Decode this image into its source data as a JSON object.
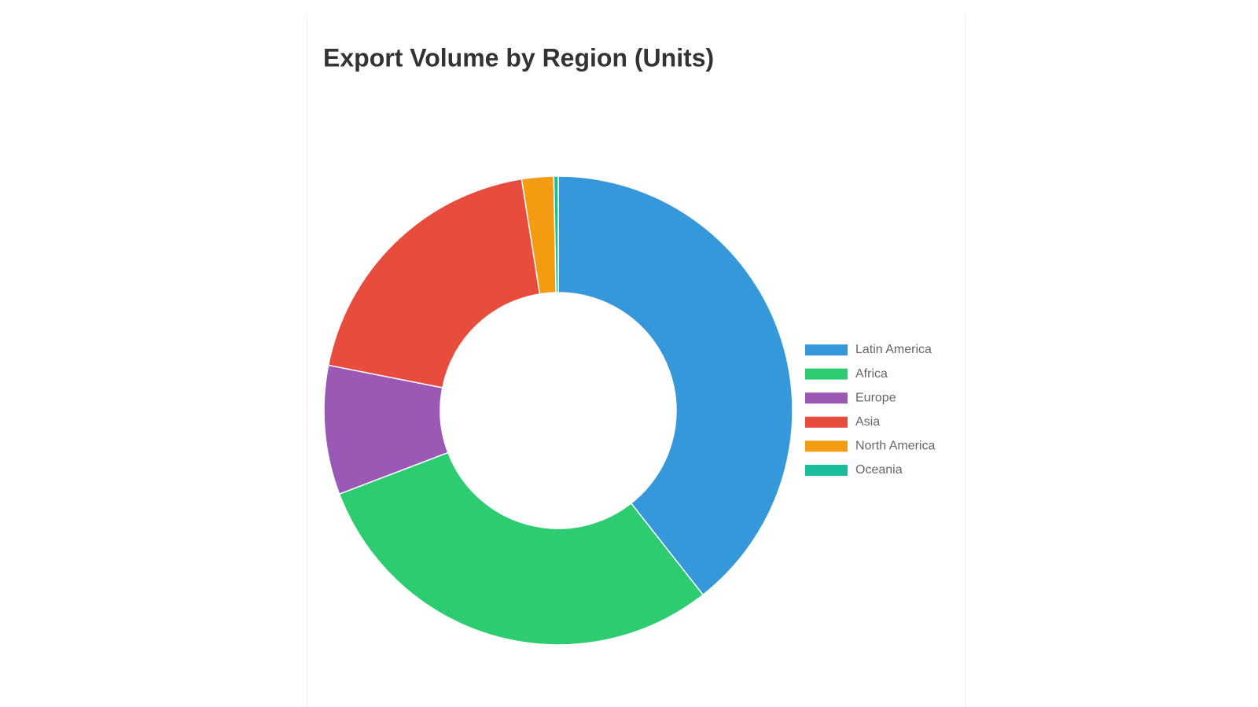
{
  "chart_data": {
    "type": "doughnut",
    "title": "Export Volume by Region (Units)",
    "categories": [
      "Latin America",
      "Africa",
      "Europe",
      "Asia",
      "North America",
      "Oceania"
    ],
    "values": [
      394,
      298,
      89,
      194,
      22,
      3
    ],
    "colors": [
      "#3498db",
      "#2ecc71",
      "#9b59b6",
      "#e74c3c",
      "#f39c12",
      "#1abc9c"
    ],
    "legend": "right"
  }
}
